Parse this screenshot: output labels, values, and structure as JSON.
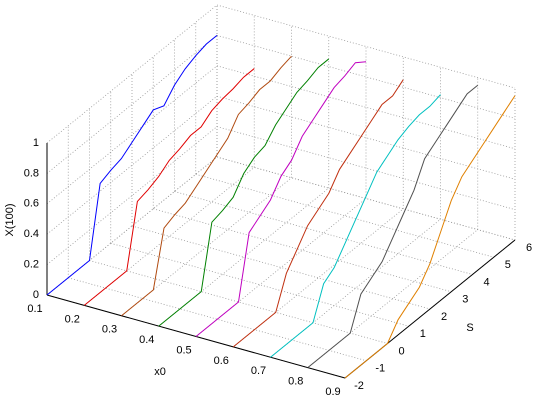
{
  "chart_data": {
    "type": "line3d",
    "xlabel": "x0",
    "ylabel": "S",
    "zlabel": "X(100)",
    "xlim": [
      0.1,
      0.9
    ],
    "xticks": [
      0.1,
      0.2,
      0.3,
      0.4,
      0.5,
      0.6,
      0.7,
      0.8,
      0.9
    ],
    "ylim": [
      -2,
      6
    ],
    "yticks": [
      -2,
      -1,
      0,
      1,
      2,
      3,
      4,
      5,
      6
    ],
    "zlim": [
      0,
      1
    ],
    "zticks": [
      0,
      0.2,
      0.4,
      0.6,
      0.8,
      1
    ],
    "grid": true,
    "s": [
      -2,
      -1.5,
      -1,
      -0.5,
      0,
      0.5,
      1,
      1.5,
      2,
      2.5,
      3,
      3.5,
      4,
      4.5,
      5,
      5.5,
      6
    ],
    "series": [
      {
        "x0": 0.1,
        "color": "#0000ff",
        "values": [
          0,
          0,
          0,
          0,
          0,
          0.45,
          0.48,
          0.5,
          0.55,
          0.6,
          0.65,
          0.62,
          0.7,
          0.75,
          0.78,
          0.8,
          0.8
        ]
      },
      {
        "x0": 0.2,
        "color": "#e00000",
        "values": [
          0,
          0,
          0,
          0,
          0,
          0.4,
          0.42,
          0.45,
          0.5,
          0.52,
          0.55,
          0.55,
          0.6,
          0.62,
          0.63,
          0.65,
          0.65
        ]
      },
      {
        "x0": 0.3,
        "color": "#b04a10",
        "values": [
          0,
          0,
          0,
          0,
          0.35,
          0.38,
          0.4,
          0.45,
          0.5,
          0.55,
          0.6,
          0.7,
          0.72,
          0.75,
          0.75,
          0.78,
          0.8
        ]
      },
      {
        "x0": 0.4,
        "color": "#008000",
        "values": [
          0,
          0,
          0,
          0,
          0,
          0.4,
          0.42,
          0.45,
          0.55,
          0.6,
          0.62,
          0.7,
          0.75,
          0.8,
          0.82,
          0.85,
          0.85
        ]
      },
      {
        "x0": 0.5,
        "color": "#c000c0",
        "values": [
          0,
          0,
          0,
          0,
          0,
          0.4,
          0.45,
          0.5,
          0.6,
          0.65,
          0.75,
          0.8,
          0.85,
          0.9,
          0.92,
          0.95,
          0.9
        ]
      },
      {
        "x0": 0.6,
        "color": "#c03010",
        "values": [
          0,
          0,
          0,
          0,
          0,
          0.2,
          0.3,
          0.4,
          0.45,
          0.5,
          0.6,
          0.65,
          0.7,
          0.75,
          0.8,
          0.8,
          0.85
        ]
      },
      {
        "x0": 0.7,
        "color": "#00c0c0",
        "values": [
          0,
          0,
          0,
          0,
          0,
          0.2,
          0.25,
          0.35,
          0.45,
          0.55,
          0.65,
          0.7,
          0.75,
          0.78,
          0.8,
          0.8,
          0.82
        ]
      },
      {
        "x0": 0.8,
        "color": "#505050",
        "values": [
          0,
          0,
          0,
          0,
          0,
          0.2,
          0.25,
          0.3,
          0.4,
          0.5,
          0.6,
          0.75,
          0.8,
          0.85,
          0.9,
          0.95,
          0.95
        ]
      },
      {
        "x0": 0.9,
        "color": "#e08000",
        "values": [
          0,
          0,
          0,
          0,
          0,
          0.1,
          0.15,
          0.2,
          0.3,
          0.45,
          0.6,
          0.7,
          0.75,
          0.8,
          0.85,
          0.9,
          0.95
        ]
      }
    ]
  }
}
